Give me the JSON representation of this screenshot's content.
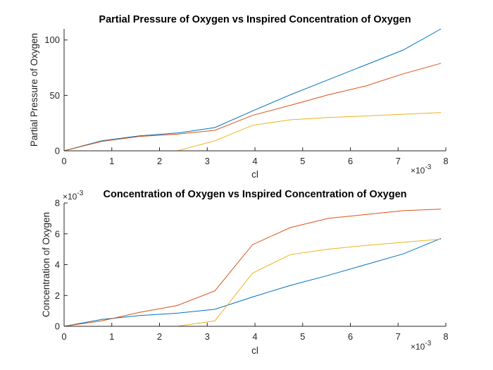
{
  "chart_data": [
    {
      "type": "line",
      "title": "Partial Pressure of Oxygen vs Inspired Concentration of Oxygen",
      "xlabel": "cl",
      "ylabel": "Partial Pressure of Oxygen",
      "x_exponent_label": "×10-3",
      "xlim": [
        0,
        0.008
      ],
      "ylim": [
        0,
        110
      ],
      "xticks": [
        0,
        0.001,
        0.002,
        0.003,
        0.004,
        0.005,
        0.006,
        0.007,
        0.008
      ],
      "xtick_labels": [
        "0",
        "1",
        "2",
        "3",
        "4",
        "5",
        "6",
        "7",
        "8"
      ],
      "yticks": [
        0,
        50,
        100
      ],
      "ytick_labels": [
        "0",
        "50",
        "100"
      ],
      "grid": false,
      "legend": "none",
      "x": [
        0,
        0.00079,
        0.00158,
        0.00237,
        0.00316,
        0.00395,
        0.00474,
        0.00553,
        0.00632,
        0.00711,
        0.0079
      ],
      "series": [
        {
          "color": "#0072BD",
          "values": [
            0,
            9,
            13.5,
            16,
            21,
            36,
            50.5,
            64,
            77.5,
            91,
            110
          ]
        },
        {
          "color": "#D95319",
          "values": [
            0,
            8.5,
            13,
            15,
            18.5,
            32,
            41,
            50.5,
            58.5,
            69.5,
            79
          ]
        },
        {
          "color": "#EDB120",
          "values": [
            0,
            0,
            0,
            0,
            9,
            23,
            28,
            30,
            31.5,
            33,
            34.5
          ]
        }
      ]
    },
    {
      "type": "line",
      "title": "Concentration of Oxygen vs Inspired Concentration of Oxygen",
      "xlabel": "cl",
      "ylabel": "Concentration of Oxygen",
      "x_exponent_label": "×10-3",
      "y_exponent_label": "×10-3",
      "xlim": [
        0,
        0.008
      ],
      "ylim": [
        0,
        8
      ],
      "xticks": [
        0,
        0.001,
        0.002,
        0.003,
        0.004,
        0.005,
        0.006,
        0.007,
        0.008
      ],
      "xtick_labels": [
        "0",
        "1",
        "2",
        "3",
        "4",
        "5",
        "6",
        "7",
        "8"
      ],
      "yticks": [
        0,
        2,
        4,
        6,
        8
      ],
      "ytick_labels": [
        "0",
        "2",
        "4",
        "6",
        "8"
      ],
      "grid": false,
      "legend": "none",
      "x": [
        0,
        0.00079,
        0.00158,
        0.00237,
        0.00316,
        0.00395,
        0.00474,
        0.00553,
        0.00632,
        0.00711,
        0.0079
      ],
      "series": [
        {
          "color": "#0072BD",
          "values": [
            0,
            0.45,
            0.7,
            0.85,
            1.1,
            1.9,
            2.65,
            3.3,
            4.0,
            4.7,
            5.7
          ]
        },
        {
          "color": "#D95319",
          "values": [
            0,
            0.35,
            0.9,
            1.35,
            2.3,
            5.3,
            6.4,
            7.0,
            7.25,
            7.5,
            7.6
          ]
        },
        {
          "color": "#EDB120",
          "values": [
            0,
            0,
            0,
            0,
            0.35,
            3.45,
            4.65,
            5.0,
            5.25,
            5.45,
            5.65
          ]
        }
      ]
    }
  ]
}
